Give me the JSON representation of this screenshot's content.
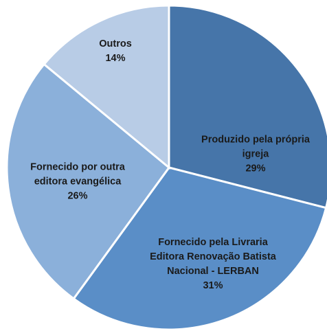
{
  "chart_data": {
    "type": "pie",
    "categories": [
      "Produzido pela própria igreja",
      "Fornecido pela Livraria Editora Renovação Batista Nacional - LERBAN",
      "Fornecido por outra editora evangélica",
      "Outros"
    ],
    "values": [
      29,
      31,
      26,
      14
    ],
    "value_labels": [
      "29%",
      "31%",
      "26%",
      "14%"
    ],
    "colors": [
      "#4675a9",
      "#5a8ec7",
      "#8bb0da",
      "#b8cce6"
    ]
  }
}
